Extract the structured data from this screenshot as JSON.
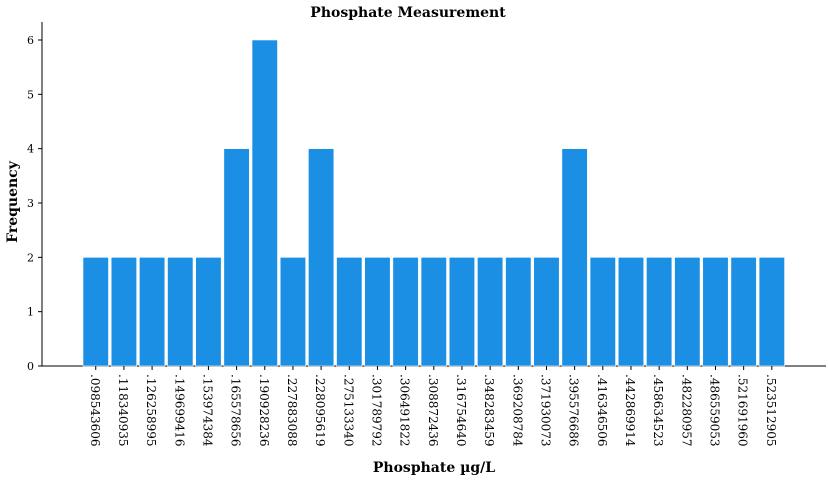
{
  "chart_data": {
    "type": "bar",
    "title": "Phosphate Measurement",
    "xlabel": "Phosphate µg/L",
    "ylabel": "Frequency",
    "ylim": [
      0,
      6.5
    ],
    "yticks": [
      0,
      1,
      2,
      3,
      4,
      5,
      6
    ],
    "categories": [
      ".098543606",
      ".118340935",
      ".126258995",
      ".149699416",
      ".153974384",
      ".165578656",
      ".190928236",
      ".227883088",
      ".228095619",
      ".275133340",
      ".301789792",
      ".306491822",
      ".308872436",
      ".316754640",
      ".348283459",
      ".369208784",
      ".371930073",
      ".395576686",
      ".416346506",
      ".442869914",
      ".458634523",
      ".482280957",
      ".486559053",
      ".521691960",
      ".523512905"
    ],
    "values": [
      2,
      2,
      2,
      2,
      2,
      4,
      6,
      2,
      4,
      2,
      2,
      2,
      2,
      2,
      2,
      2,
      2,
      4,
      2,
      2,
      2,
      2,
      2,
      2,
      2
    ],
    "bar_color": "#1a8fe3",
    "grid": false,
    "legend": "none"
  }
}
